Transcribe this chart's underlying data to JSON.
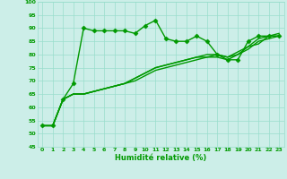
{
  "title": "",
  "xlabel": "Humidité relative (%)",
  "ylabel": "",
  "xlim": [
    -0.5,
    23.5
  ],
  "ylim": [
    45,
    100
  ],
  "xticks": [
    0,
    1,
    2,
    3,
    4,
    5,
    6,
    7,
    8,
    9,
    10,
    11,
    12,
    13,
    14,
    15,
    16,
    17,
    18,
    19,
    20,
    21,
    22,
    23
  ],
  "yticks": [
    45,
    50,
    55,
    60,
    65,
    70,
    75,
    80,
    85,
    90,
    95,
    100
  ],
  "bg_color": "#cceee8",
  "grid_color": "#99ddcc",
  "line_color": "#009900",
  "line_width": 1.0,
  "marker": "D",
  "marker_size": 2.5,
  "series": [
    [
      53,
      53,
      63,
      69,
      90,
      89,
      89,
      89,
      89,
      88,
      91,
      93,
      86,
      85,
      85,
      87,
      85,
      80,
      78,
      78,
      85,
      87,
      87,
      87
    ],
    [
      53,
      53,
      63,
      65,
      65,
      66,
      67,
      68,
      69,
      71,
      73,
      75,
      76,
      77,
      78,
      79,
      79,
      80,
      79,
      80,
      83,
      84,
      87,
      87
    ],
    [
      53,
      53,
      63,
      65,
      65,
      66,
      67,
      68,
      69,
      71,
      73,
      75,
      76,
      77,
      78,
      79,
      80,
      80,
      79,
      81,
      83,
      86,
      87,
      88
    ],
    [
      53,
      53,
      63,
      65,
      65,
      66,
      67,
      68,
      69,
      70,
      72,
      74,
      75,
      76,
      77,
      78,
      79,
      79,
      78,
      80,
      82,
      85,
      86,
      87
    ]
  ],
  "series_markers": [
    true,
    false,
    false,
    false
  ],
  "tick_fontsize": 4.5,
  "xlabel_fontsize": 6.0
}
